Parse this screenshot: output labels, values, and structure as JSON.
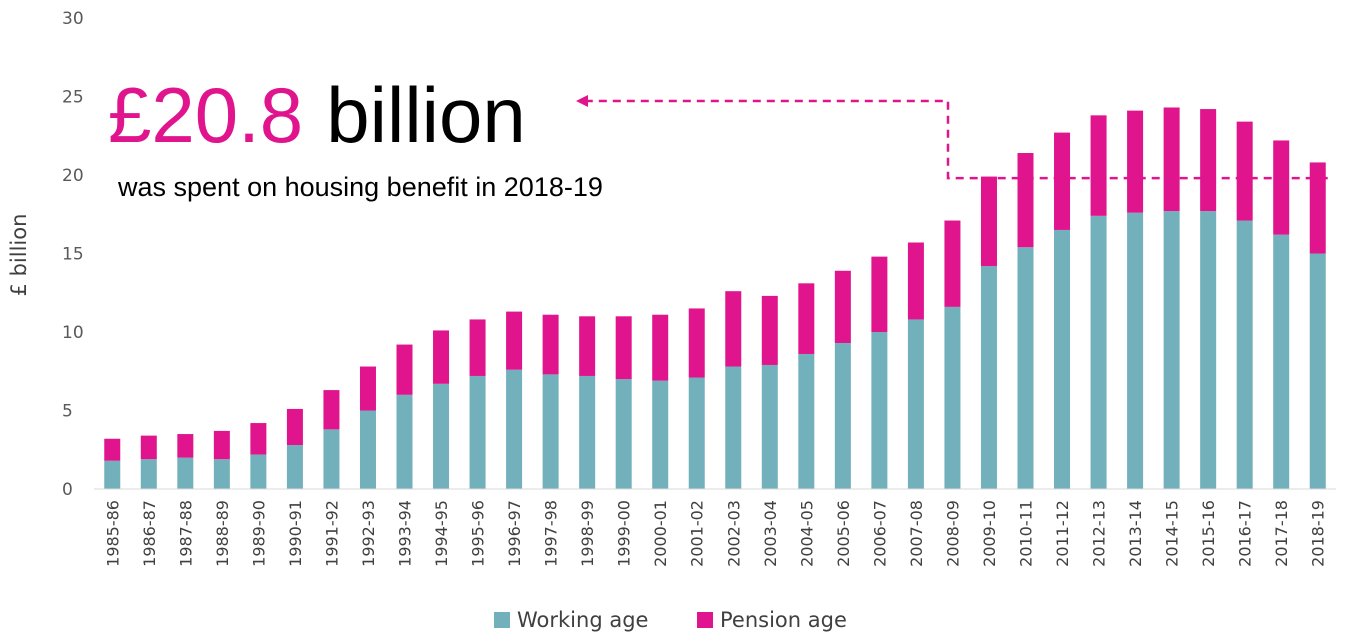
{
  "chart_data": {
    "type": "bar",
    "stacked": true,
    "ylabel": "£ billion",
    "xlabel": "",
    "ylim": [
      0,
      30
    ],
    "yticks": [
      0,
      5,
      10,
      15,
      20,
      25,
      30
    ],
    "grid": false,
    "legend_position": "bottom",
    "categories": [
      "1985-86",
      "1986-87",
      "1987-88",
      "1988-89",
      "1989-90",
      "1990-91",
      "1991-92",
      "1992-93",
      "1993-94",
      "1994-95",
      "1995-96",
      "1996-97",
      "1997-98",
      "1998-99",
      "1999-00",
      "2000-01",
      "2001-02",
      "2002-03",
      "2003-04",
      "2004-05",
      "2005-06",
      "2006-07",
      "2007-08",
      "2008-09",
      "2009-10",
      "2010-11",
      "2011-12",
      "2012-13",
      "2013-14",
      "2014-15",
      "2015-16",
      "2016-17",
      "2017-18",
      "2018-19"
    ],
    "series": [
      {
        "name": "Working age",
        "color": "#72b0bb",
        "values": [
          1.8,
          1.9,
          2.0,
          1.9,
          2.2,
          2.8,
          3.8,
          5.0,
          6.0,
          6.7,
          7.2,
          7.6,
          7.3,
          7.2,
          7.0,
          6.9,
          7.1,
          7.8,
          7.9,
          8.6,
          9.3,
          10.0,
          10.8,
          11.6,
          14.2,
          15.4,
          16.5,
          17.4,
          17.6,
          17.7,
          17.7,
          17.1,
          16.2,
          15.0
        ]
      },
      {
        "name": "Pension age",
        "color": "#e0148c",
        "values": [
          1.4,
          1.5,
          1.5,
          1.8,
          2.0,
          2.3,
          2.5,
          2.8,
          3.2,
          3.4,
          3.6,
          3.7,
          3.8,
          3.8,
          4.0,
          4.2,
          4.4,
          4.8,
          4.4,
          4.5,
          4.6,
          4.8,
          4.9,
          5.5,
          5.7,
          6.0,
          6.2,
          6.4,
          6.5,
          6.6,
          6.5,
          6.3,
          6.0,
          5.8
        ]
      }
    ],
    "annotation": {
      "amount": "£20.8",
      "unit": "billion",
      "subtitle": "was spent on housing benefit in 2018-19",
      "dashed_line_level": 19.8,
      "color": "#e0148c"
    }
  }
}
